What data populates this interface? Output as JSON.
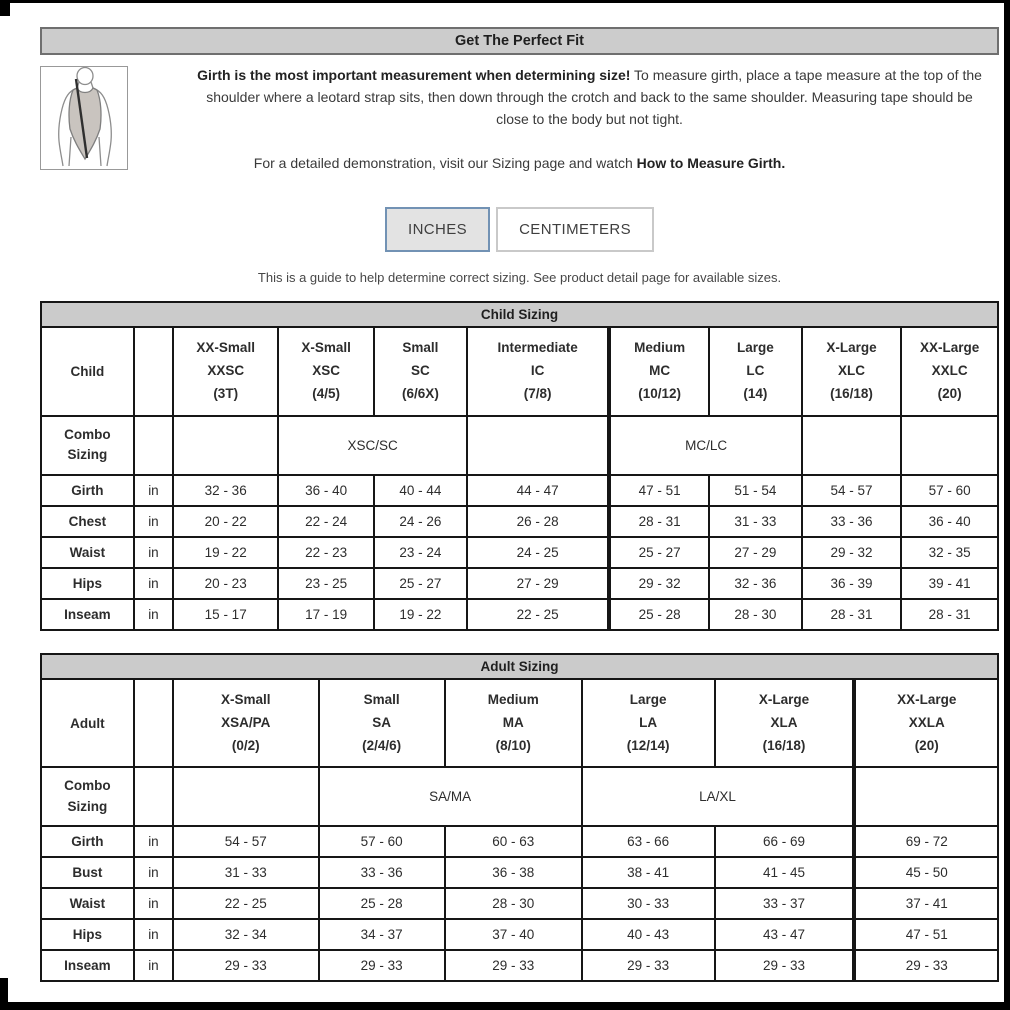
{
  "header": {
    "title": "Get The Perfect Fit"
  },
  "intro": {
    "bold_lead": "Girth is the most important measurement when determining size!",
    "text": " To measure girth, place a tape measure at the top of the shoulder where a leotard strap sits, then down through the crotch and back to the same shoulder. Measuring tape should be close to the body but not tight.",
    "demo_prefix": "For a detailed demonstration, visit our Sizing page and watch ",
    "demo_bold": "How to Measure Girth."
  },
  "unit_toggle": {
    "inches_label": "INCHES",
    "centimeters_label": "CENTIMETERS",
    "selected": "INCHES"
  },
  "note": "This is a guide to help determine correct sizing. See product detail page for available sizes.",
  "colors": {
    "title_bar_gray": "#cccccc",
    "selected_button_border": "#7292b4",
    "selected_button_bg": "#e3e3e3",
    "table_border": "#161616"
  },
  "child_table": {
    "title": "Child Sizing",
    "corner_label": "Child",
    "combo_label": "Combo Sizing",
    "size_columns": [
      [
        "XX-Small",
        "XXSC",
        "(3T)"
      ],
      [
        "X-Small",
        "XSC",
        "(4/5)"
      ],
      [
        "Small",
        "SC",
        "(6/6X)"
      ],
      [
        "Intermediate",
        "IC",
        "(7/8)"
      ],
      [
        "Medium",
        "MC",
        "(10/12)"
      ],
      [
        "Large",
        "LC",
        "(14)"
      ],
      [
        "X-Large",
        "XLC",
        "(16/18)"
      ],
      [
        "XX-Large",
        "XXLC",
        "(20)"
      ]
    ],
    "combo_cells": [
      {
        "text": "",
        "colspan": 1
      },
      {
        "text": "XSC/SC",
        "colspan": 2
      },
      {
        "text": "",
        "colspan": 1
      },
      {
        "text": "MC/LC",
        "colspan": 2
      },
      {
        "text": "",
        "colspan": 1
      },
      {
        "text": "",
        "colspan": 1
      }
    ],
    "measurement_rows": [
      {
        "label": "Girth",
        "unit": "in",
        "values": [
          "32 - 36",
          "36 - 40",
          "40 - 44",
          "44 - 47",
          "47 - 51",
          "51 - 54",
          "54 - 57",
          "57 - 60"
        ]
      },
      {
        "label": "Chest",
        "unit": "in",
        "values": [
          "20 - 22",
          "22 - 24",
          "24 - 26",
          "26 - 28",
          "28 - 31",
          "31 - 33",
          "33 - 36",
          "36 - 40"
        ]
      },
      {
        "label": "Waist",
        "unit": "in",
        "values": [
          "19 - 22",
          "22 - 23",
          "23 - 24",
          "24 - 25",
          "25 - 27",
          "27 - 29",
          "29 - 32",
          "32 - 35"
        ]
      },
      {
        "label": "Hips",
        "unit": "in",
        "values": [
          "20 - 23",
          "23 - 25",
          "25 - 27",
          "27 - 29",
          "29 - 32",
          "32 - 36",
          "36 - 39",
          "39 - 41"
        ]
      },
      {
        "label": "Inseam",
        "unit": "in",
        "values": [
          "15 - 17",
          "17 - 19",
          "19 - 22",
          "22 - 25",
          "25 - 28",
          "28 - 30",
          "28 - 31",
          "28 - 31"
        ]
      }
    ]
  },
  "adult_table": {
    "title": "Adult Sizing",
    "corner_label": "Adult",
    "combo_label": "Combo Sizing",
    "size_columns": [
      [
        "X-Small",
        "XSA/PA",
        "(0/2)"
      ],
      [
        "Small",
        "SA",
        "(2/4/6)"
      ],
      [
        "Medium",
        "MA",
        "(8/10)"
      ],
      [
        "Large",
        "LA",
        "(12/14)"
      ],
      [
        "X-Large",
        "XLA",
        "(16/18)"
      ],
      [
        "XX-Large",
        "XXLA",
        "(20)"
      ]
    ],
    "combo_cells": [
      {
        "text": "",
        "colspan": 1
      },
      {
        "text": "SA/MA",
        "colspan": 2
      },
      {
        "text": "LA/XL",
        "colspan": 2
      },
      {
        "text": "",
        "colspan": 1
      }
    ],
    "measurement_rows": [
      {
        "label": "Girth",
        "unit": "in",
        "values": [
          "54 - 57",
          "57 - 60",
          "60 - 63",
          "63 - 66",
          "66 - 69",
          "69 - 72"
        ]
      },
      {
        "label": "Bust",
        "unit": "in",
        "values": [
          "31 - 33",
          "33 - 36",
          "36 - 38",
          "38 - 41",
          "41 - 45",
          "45 - 50"
        ]
      },
      {
        "label": "Waist",
        "unit": "in",
        "values": [
          "22 - 25",
          "25 - 28",
          "28 - 30",
          "30 - 33",
          "33 - 37",
          "37 - 41"
        ]
      },
      {
        "label": "Hips",
        "unit": "in",
        "values": [
          "32 - 34",
          "34 - 37",
          "37 - 40",
          "40 - 43",
          "43 - 47",
          "47 - 51"
        ]
      },
      {
        "label": "Inseam",
        "unit": "in",
        "values": [
          "29 - 33",
          "29 - 33",
          "29 - 33",
          "29 - 33",
          "29 - 33",
          "29 - 33"
        ]
      }
    ]
  }
}
